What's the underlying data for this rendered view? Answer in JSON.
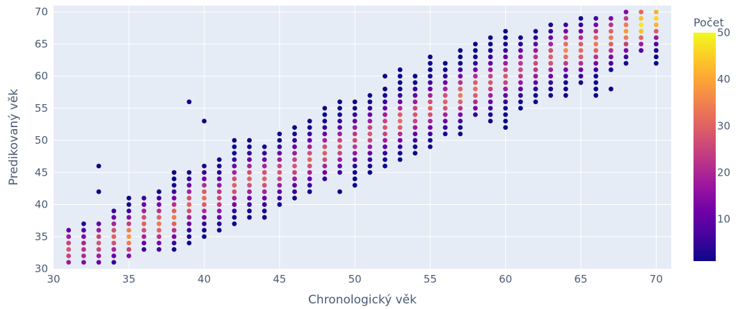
{
  "chart_data": {
    "type": "scatter",
    "title": "",
    "xlabel": "Chronologický věk",
    "ylabel": "Predikovaný věk",
    "xlim": [
      30,
      71
    ],
    "ylim": [
      30,
      71
    ],
    "xticks": [
      30,
      35,
      40,
      45,
      50,
      55,
      60,
      65,
      70
    ],
    "yticks": [
      30,
      35,
      40,
      45,
      50,
      55,
      60,
      65,
      70
    ],
    "grid": true,
    "colorbar": {
      "title": "Počet",
      "range": [
        1,
        50
      ],
      "ticks": [
        10,
        20,
        30,
        40,
        50
      ],
      "colorscale": [
        "#0d0887",
        "#46039f",
        "#7201a8",
        "#9c179e",
        "#bd3786",
        "#d8576b",
        "#ed7953",
        "#fb9f3a",
        "#fdca26",
        "#f0f921"
      ]
    },
    "columns": [
      {
        "x": 31,
        "ymin": 31,
        "ymax": 36,
        "peak": 33,
        "max": 28
      },
      {
        "x": 32,
        "ymin": 31,
        "ymax": 37,
        "peak": 33,
        "max": 22
      },
      {
        "x": 33,
        "ymin": 31,
        "ymax": 37,
        "peak": 34,
        "max": 28,
        "extra": [
          42,
          46
        ]
      },
      {
        "x": 34,
        "ymin": 31,
        "ymax": 39,
        "peak": 35,
        "max": 30
      },
      {
        "x": 35,
        "ymin": 32,
        "ymax": 41,
        "peak": 35,
        "max": 38
      },
      {
        "x": 36,
        "ymin": 33,
        "ymax": 41,
        "peak": 37,
        "max": 30
      },
      {
        "x": 37,
        "ymin": 33,
        "ymax": 42,
        "peak": 37,
        "max": 34
      },
      {
        "x": 38,
        "ymin": 33,
        "ymax": 45,
        "peak": 38,
        "max": 34
      },
      {
        "x": 39,
        "ymin": 34,
        "ymax": 45,
        "peak": 40,
        "max": 30,
        "extra": [
          56
        ]
      },
      {
        "x": 40,
        "ymin": 35,
        "ymax": 46,
        "peak": 41,
        "max": 32,
        "extra": [
          53
        ]
      },
      {
        "x": 41,
        "ymin": 36,
        "ymax": 47,
        "peak": 41,
        "max": 26
      },
      {
        "x": 42,
        "ymin": 37,
        "ymax": 50,
        "peak": 43,
        "max": 30
      },
      {
        "x": 43,
        "ymin": 38,
        "ymax": 50,
        "peak": 44,
        "max": 30
      },
      {
        "x": 44,
        "ymin": 38,
        "ymax": 49,
        "peak": 44,
        "max": 30
      },
      {
        "x": 45,
        "ymin": 40,
        "ymax": 51,
        "peak": 45,
        "max": 28
      },
      {
        "x": 46,
        "ymin": 41,
        "ymax": 52,
        "peak": 46,
        "max": 28
      },
      {
        "x": 47,
        "ymin": 42,
        "ymax": 53,
        "peak": 47,
        "max": 30
      },
      {
        "x": 48,
        "ymin": 44,
        "ymax": 55,
        "peak": 48,
        "max": 30
      },
      {
        "x": 49,
        "ymin": 45,
        "ymax": 56,
        "peak": 49,
        "max": 28,
        "extra": [
          42
        ]
      },
      {
        "x": 50,
        "ymin": 43,
        "ymax": 56,
        "peak": 50,
        "max": 26
      },
      {
        "x": 51,
        "ymin": 45,
        "ymax": 57,
        "peak": 51,
        "max": 28
      },
      {
        "x": 52,
        "ymin": 46,
        "ymax": 58,
        "peak": 52,
        "max": 28,
        "extra": [
          60
        ]
      },
      {
        "x": 53,
        "ymin": 47,
        "ymax": 61,
        "peak": 53,
        "max": 32
      },
      {
        "x": 54,
        "ymin": 48,
        "ymax": 60,
        "peak": 54,
        "max": 28
      },
      {
        "x": 55,
        "ymin": 49,
        "ymax": 63,
        "peak": 55,
        "max": 30
      },
      {
        "x": 56,
        "ymin": 51,
        "ymax": 62,
        "peak": 56,
        "max": 30
      },
      {
        "x": 57,
        "ymin": 51,
        "ymax": 64,
        "peak": 57,
        "max": 34
      },
      {
        "x": 58,
        "ymin": 54,
        "ymax": 65,
        "peak": 58,
        "max": 32
      },
      {
        "x": 59,
        "ymin": 53,
        "ymax": 66,
        "peak": 59,
        "max": 28
      },
      {
        "x": 60,
        "ymin": 52,
        "ymax": 67,
        "peak": 60,
        "max": 28
      },
      {
        "x": 61,
        "ymin": 55,
        "ymax": 66,
        "peak": 61,
        "max": 26
      },
      {
        "x": 62,
        "ymin": 56,
        "ymax": 67,
        "peak": 62,
        "max": 26
      },
      {
        "x": 63,
        "ymin": 57,
        "ymax": 68,
        "peak": 63,
        "max": 30
      },
      {
        "x": 64,
        "ymin": 57,
        "ymax": 68,
        "peak": 64,
        "max": 36
      },
      {
        "x": 65,
        "ymin": 59,
        "ymax": 69,
        "peak": 64,
        "max": 32
      },
      {
        "x": 66,
        "ymin": 57,
        "ymax": 69,
        "peak": 65,
        "max": 34
      },
      {
        "x": 67,
        "ymin": 61,
        "ymax": 69,
        "peak": 66,
        "max": 34,
        "extra": [
          58
        ]
      },
      {
        "x": 68,
        "ymin": 62,
        "ymax": 70,
        "peak": 67,
        "max": 38
      },
      {
        "x": 69,
        "ymin": 64,
        "ymax": 70,
        "peak": 68,
        "max": 48
      },
      {
        "x": 70,
        "ymin": 62,
        "ymax": 70,
        "peak": 69,
        "max": 46
      }
    ]
  }
}
